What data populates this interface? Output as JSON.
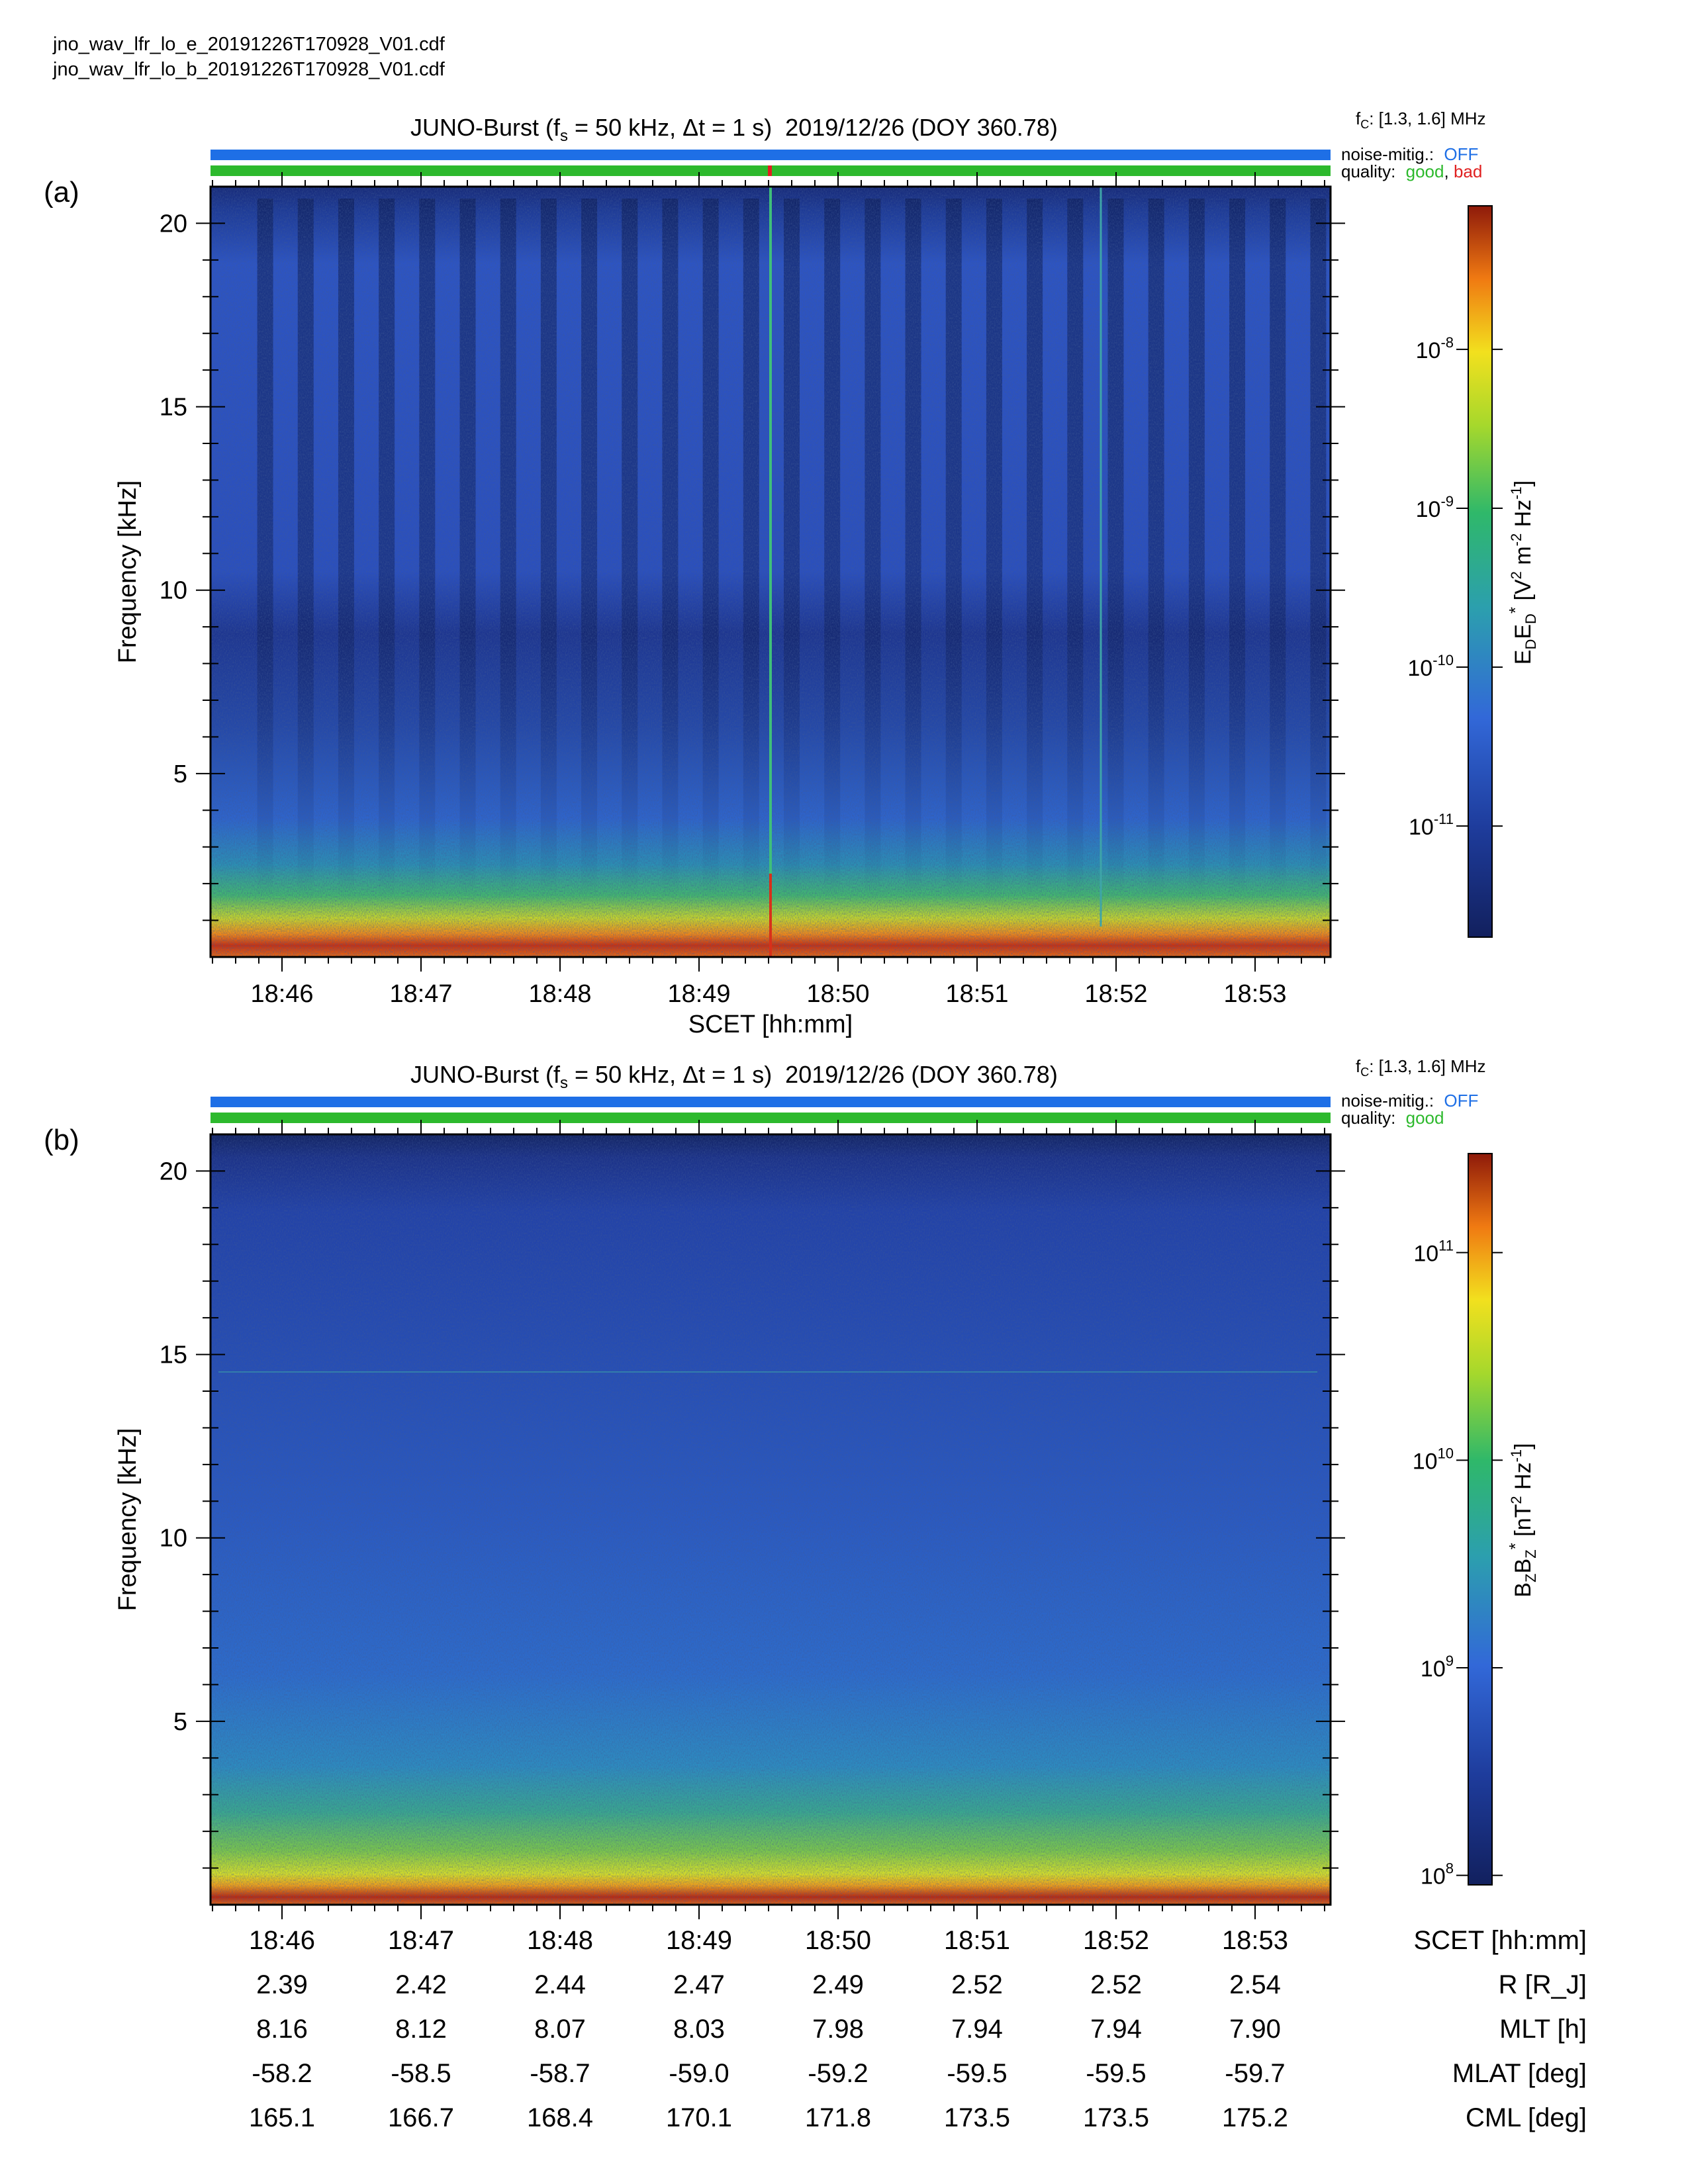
{
  "files": [
    "jno_wav_lfr_lo_e_20191226T170928_V01.cdf",
    "jno_wav_lfr_lo_b_20191226T170928_V01.cdf"
  ],
  "colors": {
    "noise_bar": "#1e6fe6",
    "quality_good": "#2db92d",
    "quality_bad": "#e02020"
  },
  "panels": [
    {
      "label": "(a)",
      "title": "JUNO-Burst (f_s = 50 kHz, Δt = 1 s)  2019/12/26 (DOY 360.78)",
      "fc_label": "f_c: [1.3, 1.6] MHz",
      "noise_label": "noise-mitig.:",
      "noise_value": "OFF",
      "quality_label": "quality:",
      "quality_good": "good",
      "quality_sep": ",",
      "quality_bad": "bad",
      "colorbar_label": "E_D E_D* [V² m⁻² Hz⁻¹]",
      "x_label": "SCET [hh:mm]"
    },
    {
      "label": "(b)",
      "title": "JUNO-Burst (f_s = 50 kHz, Δt = 1 s)  2019/12/26 (DOY 360.78)",
      "fc_label": "f_c: [1.3, 1.6] MHz",
      "noise_label": "noise-mitig.:",
      "noise_value": "OFF",
      "quality_label": "quality:",
      "quality_good": "good",
      "colorbar_label": "B_Z B_Z* [nT² Hz⁻¹]"
    }
  ],
  "chart_data": [
    {
      "type": "heatmap",
      "title": "JUNO-Burst (fs = 50 kHz, Δt = 1 s) 2019/12/26 (DOY 360.78)",
      "xlabel": "SCET [hh:mm]",
      "ylabel": "Frequency [kHz]",
      "x_ticks": [
        "18:46",
        "18:47",
        "18:48",
        "18:49",
        "18:50",
        "18:51",
        "18:52",
        "18:53"
      ],
      "y_ticks": [
        5,
        10,
        15,
        20
      ],
      "ylim": [
        0,
        21
      ],
      "colorbar": {
        "label": "EDED* [V2 m-2 Hz-1]",
        "scale": "log",
        "range": [
          2e-12,
          8e-08
        ],
        "ticks": [
          "10-8",
          "10-9",
          "10-10",
          "10-11"
        ]
      },
      "features": {
        "bad_quality_time": "18:49.5",
        "periodic_bursts": 27
      }
    },
    {
      "type": "heatmap",
      "title": "JUNO-Burst (fs = 50 kHz, Δt = 1 s) 2019/12/26 (DOY 360.78)",
      "ylabel": "Frequency [kHz]",
      "x_ticks": [
        "18:46",
        "18:47",
        "18:48",
        "18:49",
        "18:50",
        "18:51",
        "18:52",
        "18:53"
      ],
      "y_ticks": [
        5,
        10,
        15,
        20
      ],
      "ylim": [
        0,
        21
      ],
      "colorbar": {
        "label": "BZBZ* [nT2 Hz-1]",
        "scale": "log",
        "range": [
          90000000.0,
          300000000000.0
        ],
        "ticks": [
          "10^11",
          "10^10",
          "10^9",
          "10^8"
        ]
      }
    }
  ],
  "ephemeris": {
    "rows": [
      {
        "label": "SCET [hh:mm]",
        "values": [
          "18:46",
          "18:47",
          "18:48",
          "18:49",
          "18:50",
          "18:51",
          "18:52",
          "18:53"
        ]
      },
      {
        "label": "R [R_J]",
        "values": [
          "2.39",
          "2.42",
          "2.44",
          "2.47",
          "2.49",
          "2.52",
          "2.52",
          "2.54"
        ]
      },
      {
        "label": "MLT [h]",
        "values": [
          "8.16",
          "8.12",
          "8.07",
          "8.03",
          "7.98",
          "7.94",
          "7.94",
          "7.90"
        ]
      },
      {
        "label": "MLAT [deg]",
        "values": [
          "-58.2",
          "-58.5",
          "-58.7",
          "-59.0",
          "-59.2",
          "-59.5",
          "-59.5",
          "-59.7"
        ]
      },
      {
        "label": "CML [deg]",
        "values": [
          "165.1",
          "166.7",
          "168.4",
          "170.1",
          "171.8",
          "173.5",
          "173.5",
          "175.2"
        ]
      }
    ]
  }
}
